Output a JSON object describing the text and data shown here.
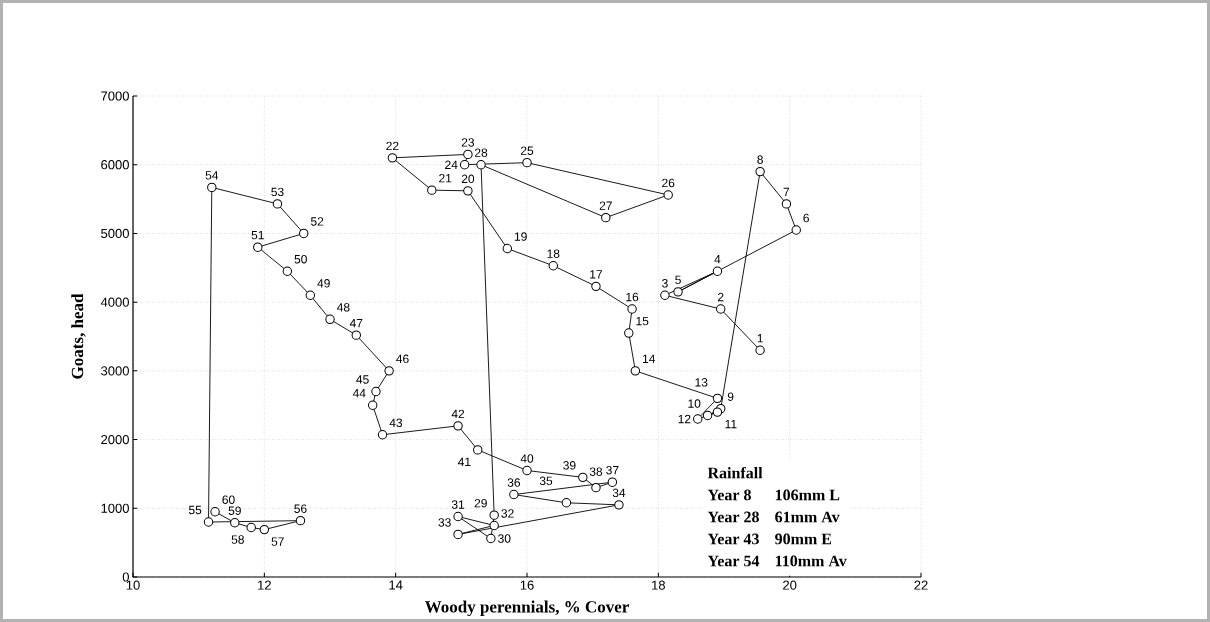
{
  "chart_data": {
    "type": "line",
    "xlabel": "Woody perennials, % Cover",
    "ylabel": "Goats, head",
    "color": "#000000",
    "marker": "circle",
    "line_style": "solid",
    "grid": true,
    "xlim": [
      10,
      22
    ],
    "ylim": [
      0,
      7000
    ],
    "xticks": [
      10,
      12,
      14,
      16,
      18,
      20,
      22
    ],
    "yticks": [
      0,
      1000,
      2000,
      3000,
      4000,
      5000,
      6000,
      7000
    ],
    "x": [
      19.55,
      18.95,
      18.1,
      18.9,
      18.3,
      20.1,
      19.95,
      19.55,
      18.95,
      18.75,
      18.9,
      18.6,
      18.9,
      17.65,
      17.55,
      17.6,
      17.05,
      16.4,
      15.7,
      15.1,
      14.55,
      13.95,
      15.1,
      15.05,
      16.0,
      18.15,
      17.2,
      15.3,
      15.5,
      15.45,
      14.95,
      15.5,
      14.95,
      17.4,
      16.6,
      15.8,
      17.3,
      17.05,
      16.85,
      16.0,
      15.25,
      14.95,
      13.8,
      13.65,
      13.7,
      13.9,
      13.4,
      13.0,
      12.7,
      12.35,
      11.9,
      12.6,
      12.2,
      11.2,
      11.15,
      12.55,
      12.0,
      11.8,
      11.55,
      11.25
    ],
    "values": [
      3300,
      3900,
      4100,
      4450,
      4150,
      5050,
      5430,
      5900,
      2450,
      2350,
      2400,
      2300,
      2600,
      3000,
      3550,
      3900,
      4230,
      4530,
      4780,
      5620,
      5630,
      6100,
      6150,
      6000,
      6030,
      5560,
      5230,
      6000,
      900,
      560,
      880,
      750,
      620,
      1050,
      1080,
      1200,
      1380,
      1300,
      1450,
      1550,
      1850,
      2200,
      2070,
      2500,
      2700,
      3000,
      3520,
      3750,
      4100,
      4450,
      4800,
      5000,
      5430,
      5670,
      800,
      820,
      690,
      720,
      790,
      950
    ],
    "annotations": [
      {
        "text": "1",
        "x": 19.55,
        "y": 3300
      },
      {
        "text": "2",
        "x": 18.95,
        "y": 3900
      },
      {
        "text": "3",
        "x": 18.1,
        "y": 4100
      },
      {
        "text": "4",
        "x": 18.9,
        "y": 4450
      },
      {
        "text": "5",
        "x": 18.3,
        "y": 4150
      },
      {
        "text": "6",
        "x": 20.1,
        "y": 5050
      },
      {
        "text": "7",
        "x": 19.95,
        "y": 5430
      },
      {
        "text": "8",
        "x": 19.55,
        "y": 5900
      },
      {
        "text": "9",
        "x": 18.95,
        "y": 2450
      },
      {
        "text": "10",
        "x": 18.75,
        "y": 2350
      },
      {
        "text": "11",
        "x": 18.9,
        "y": 2400
      },
      {
        "text": "12",
        "x": 18.6,
        "y": 2300
      },
      {
        "text": "13",
        "x": 18.9,
        "y": 2600
      },
      {
        "text": "14",
        "x": 17.65,
        "y": 3000
      },
      {
        "text": "15",
        "x": 17.55,
        "y": 3550
      },
      {
        "text": "16",
        "x": 17.6,
        "y": 3900
      },
      {
        "text": "17",
        "x": 17.05,
        "y": 4230
      },
      {
        "text": "18",
        "x": 16.4,
        "y": 4530
      },
      {
        "text": "19",
        "x": 15.7,
        "y": 4780
      },
      {
        "text": "20",
        "x": 15.1,
        "y": 5620
      },
      {
        "text": "21",
        "x": 14.55,
        "y": 5630
      },
      {
        "text": "22",
        "x": 13.95,
        "y": 6100
      },
      {
        "text": "23",
        "x": 15.1,
        "y": 6150
      },
      {
        "text": "24",
        "x": 15.05,
        "y": 6000
      },
      {
        "text": "25",
        "x": 16.0,
        "y": 6030
      },
      {
        "text": "26",
        "x": 18.15,
        "y": 5560
      },
      {
        "text": "27",
        "x": 17.2,
        "y": 5230
      },
      {
        "text": "28",
        "x": 15.3,
        "y": 6000
      },
      {
        "text": "29",
        "x": 15.5,
        "y": 900
      },
      {
        "text": "30",
        "x": 15.45,
        "y": 560
      },
      {
        "text": "31",
        "x": 14.95,
        "y": 880
      },
      {
        "text": "32",
        "x": 15.5,
        "y": 750
      },
      {
        "text": "33",
        "x": 14.95,
        "y": 620
      },
      {
        "text": "34",
        "x": 17.4,
        "y": 1050
      },
      {
        "text": "35",
        "x": 16.6,
        "y": 1080
      },
      {
        "text": "36",
        "x": 15.8,
        "y": 1200
      },
      {
        "text": "37",
        "x": 17.3,
        "y": 1380
      },
      {
        "text": "38",
        "x": 17.05,
        "y": 1300
      },
      {
        "text": "39",
        "x": 16.85,
        "y": 1450
      },
      {
        "text": "40",
        "x": 16.0,
        "y": 1550
      },
      {
        "text": "41",
        "x": 15.25,
        "y": 1850
      },
      {
        "text": "42",
        "x": 14.95,
        "y": 2200
      },
      {
        "text": "43",
        "x": 13.8,
        "y": 2070
      },
      {
        "text": "44",
        "x": 13.65,
        "y": 2500
      },
      {
        "text": "45",
        "x": 13.7,
        "y": 2700
      },
      {
        "text": "46",
        "x": 13.9,
        "y": 3000
      },
      {
        "text": "47",
        "x": 13.4,
        "y": 3520
      },
      {
        "text": "48",
        "x": 13.0,
        "y": 3750
      },
      {
        "text": "49",
        "x": 12.7,
        "y": 4100
      },
      {
        "text": "50",
        "x": 12.35,
        "y": 4450
      },
      {
        "text": "51",
        "x": 11.9,
        "y": 4800
      },
      {
        "text": "52",
        "x": 12.6,
        "y": 5000
      },
      {
        "text": "53",
        "x": 12.2,
        "y": 5430
      },
      {
        "text": "54",
        "x": 11.2,
        "y": 5670
      },
      {
        "text": "55",
        "x": 11.15,
        "y": 800
      },
      {
        "text": "56",
        "x": 12.55,
        "y": 820
      },
      {
        "text": "57",
        "x": 12.0,
        "y": 690
      },
      {
        "text": "58",
        "x": 11.8,
        "y": 720
      },
      {
        "text": "59",
        "x": 11.55,
        "y": 790
      },
      {
        "text": "60",
        "x": 11.25,
        "y": 950
      },
      "Rainfall",
      "Year 8",
      "106mm L",
      "Year 28",
      "61mm Av",
      "Year 43",
      "90mm E",
      "Year 54",
      "110mm Av"
    ]
  }
}
